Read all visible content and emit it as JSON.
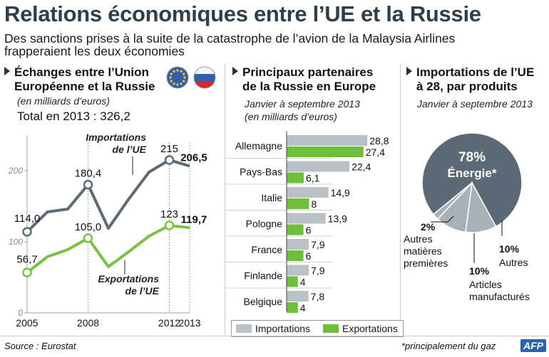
{
  "header": {
    "title": "Relations économiques entre l’UE et la Russie",
    "subtitle": "Des sanctions prises à la suite de la catastrophe de l’avion de la Malaysia Airlines frapperaient les deux économies"
  },
  "colors": {
    "import": "#5d6b75",
    "export": "#7ac143",
    "grey_bar": "#b9c1c7",
    "green_bar": "#6fbe3a",
    "pie_main": "#5b6a74",
    "pie_light": "#a7b1b8"
  },
  "section1": {
    "title_line1": "Échanges entre l’Union",
    "title_line2": "Européenne et la Russie",
    "unit": "(en milliards d’euros)",
    "total": "Total en 2013 : 326,2",
    "import_label_1": "Importations",
    "import_label_2": "de l’UE",
    "export_label_1": "Exportations",
    "export_label_2": "de l’UE"
  },
  "section2": {
    "title_line1": "Principaux partenaires",
    "title_line2": "de la Russie en Europe",
    "period": "Janvier à septembre 2013",
    "unit": "(en milliards d’euros)",
    "legend_import": "Importations",
    "legend_export": "Exportations"
  },
  "section3": {
    "title_line1": "Importations de l’UE",
    "title_line2": "à 28, par produits",
    "period": "Janvier à septembre 2013"
  },
  "footer": {
    "source": "Source : Eurostat",
    "note": "*principalement du gaz",
    "logo": "AFP"
  },
  "chart_data": [
    {
      "type": "line",
      "title": "Échanges entre l’Union Européenne et la Russie",
      "ylabel": "en milliards d’euros",
      "ylim": [
        0,
        250
      ],
      "yticks": [
        0,
        100,
        200
      ],
      "x": [
        2005,
        2006,
        2007,
        2008,
        2009,
        2010,
        2011,
        2012,
        2013
      ],
      "xtick_labels": [
        "2005",
        "2008",
        "2012",
        "2013"
      ],
      "series": [
        {
          "name": "Importations de l’UE",
          "values": [
            114.0,
            142,
            146,
            180.4,
            119,
            160,
            198,
            215,
            206.5
          ],
          "labels": [
            {
              "index": 0,
              "text": "114,0",
              "bold": false
            },
            {
              "index": 3,
              "text": "180,4",
              "bold": false
            },
            {
              "index": 7,
              "text": "215",
              "bold": false
            },
            {
              "index": 8,
              "text": "206,5",
              "bold": true
            }
          ]
        },
        {
          "name": "Exportations de l’UE",
          "values": [
            56.7,
            79,
            89,
            105.0,
            65,
            86,
            108,
            123,
            119.7
          ],
          "labels": [
            {
              "index": 0,
              "text": "56,7",
              "bold": false
            },
            {
              "index": 3,
              "text": "105,0",
              "bold": false
            },
            {
              "index": 7,
              "text": "123",
              "bold": false
            },
            {
              "index": 8,
              "text": "119,7",
              "bold": true
            }
          ]
        }
      ]
    },
    {
      "type": "bar",
      "title": "Principaux partenaires de la Russie en Europe",
      "categories": [
        "Allemagne",
        "Pays-Bas",
        "Italie",
        "Pologne",
        "France",
        "Finlande",
        "Belgique"
      ],
      "series": [
        {
          "name": "Importations",
          "values": [
            28.8,
            22.4,
            14.9,
            13.9,
            7.9,
            7.9,
            7.8
          ],
          "labels": [
            "28,8",
            "22,4",
            "14,9",
            "13,9",
            "7,9",
            "7,9",
            "7,8"
          ]
        },
        {
          "name": "Exportations",
          "values": [
            27.4,
            6.1,
            8,
            6,
            6,
            4,
            4
          ],
          "labels": [
            "27,4",
            "6,1",
            "8",
            "6",
            "6",
            "4",
            "4"
          ]
        }
      ]
    },
    {
      "type": "pie",
      "title": "Importations de l’UE à 28, par produits",
      "slices": [
        {
          "name": "Énergie*",
          "value": 78,
          "label": "78%"
        },
        {
          "name": "Autres",
          "value": 10,
          "label": "10%"
        },
        {
          "name": "Articles manufacturés",
          "value": 10,
          "label": "10%"
        },
        {
          "name": "Autres matières premières",
          "value": 2,
          "label": "2%"
        }
      ]
    }
  ]
}
